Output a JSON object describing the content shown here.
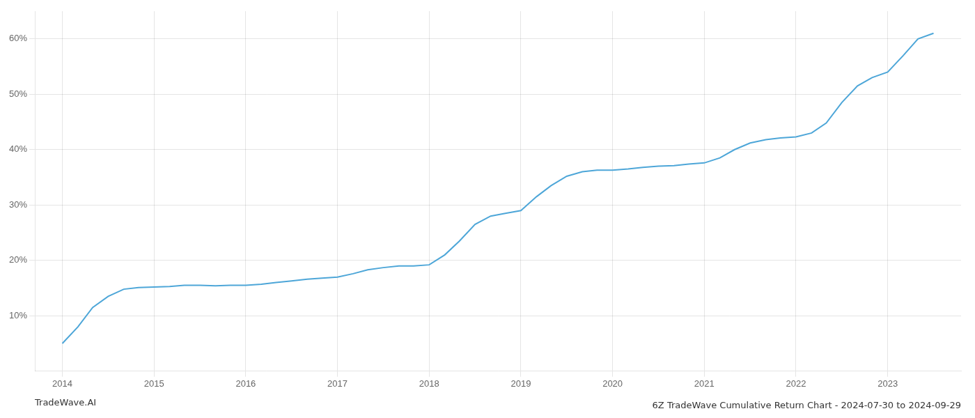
{
  "chart_data": {
    "type": "line",
    "title": "6Z TradeWave Cumulative Return Chart - 2024-07-30 to 2024-09-29",
    "annotations": [
      "TradeWave.AI"
    ],
    "color": "#4da6d8",
    "x": [
      2014.0,
      2014.17,
      2014.33,
      2014.5,
      2014.67,
      2014.83,
      2015.0,
      2015.17,
      2015.33,
      2015.5,
      2015.67,
      2015.83,
      2016.0,
      2016.17,
      2016.33,
      2016.5,
      2016.67,
      2016.83,
      2017.0,
      2017.17,
      2017.33,
      2017.5,
      2017.67,
      2017.83,
      2018.0,
      2018.17,
      2018.33,
      2018.5,
      2018.67,
      2018.83,
      2019.0,
      2019.17,
      2019.33,
      2019.5,
      2019.67,
      2019.83,
      2020.0,
      2020.17,
      2020.33,
      2020.5,
      2020.67,
      2020.83,
      2021.0,
      2021.17,
      2021.33,
      2021.5,
      2021.67,
      2021.83,
      2022.0,
      2022.17,
      2022.33,
      2022.5,
      2022.67,
      2022.83,
      2023.0,
      2023.17,
      2023.33,
      2023.5
    ],
    "values": [
      5.0,
      8.0,
      11.5,
      13.5,
      14.8,
      15.1,
      15.2,
      15.3,
      15.5,
      15.5,
      15.4,
      15.5,
      15.5,
      15.7,
      16.0,
      16.3,
      16.6,
      16.8,
      17.0,
      17.6,
      18.3,
      18.7,
      19.0,
      19.0,
      19.2,
      21.0,
      23.5,
      26.5,
      28.0,
      28.5,
      29.0,
      31.5,
      33.5,
      35.2,
      36.0,
      36.3,
      36.3,
      36.5,
      36.8,
      37.0,
      37.1,
      37.4,
      37.6,
      38.5,
      40.0,
      41.2,
      41.8,
      42.1,
      42.3,
      43.0,
      44.8,
      48.5,
      51.5,
      53.0,
      54.0,
      57.0,
      60.0,
      61.0
    ],
    "xlim": [
      2013.7,
      2023.8
    ],
    "xticks": [
      2014,
      2015,
      2016,
      2017,
      2018,
      2019,
      2020,
      2021,
      2022,
      2023
    ],
    "ylim": [
      0,
      65
    ],
    "yticks": [
      {
        "value": 10,
        "label": "10%"
      },
      {
        "value": 20,
        "label": "20%"
      },
      {
        "value": 30,
        "label": "30%"
      },
      {
        "value": 40,
        "label": "40%"
      },
      {
        "value": 50,
        "label": "50%"
      },
      {
        "value": 60,
        "label": "60%"
      }
    ],
    "grid": true
  }
}
